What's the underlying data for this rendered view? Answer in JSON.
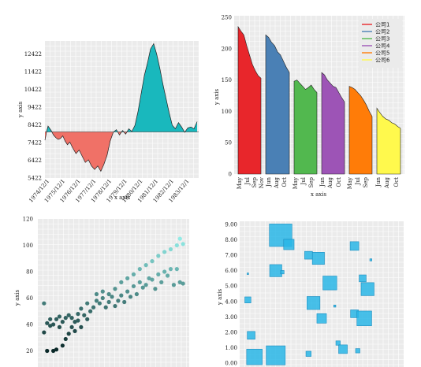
{
  "chart_data": [
    {
      "type": "area",
      "xlabel": "x axis",
      "ylabel": "y axis",
      "baseline": 8022,
      "ylim": [
        5422,
        13422
      ],
      "yticks": [
        "5422",
        "6422",
        "7422",
        "8422",
        "9422",
        "10422",
        "11422",
        "12422"
      ],
      "xticks": [
        "1974/12/1",
        "1975/12/1",
        "1976/12/1",
        "1977/12/1",
        "1978/12/1",
        "1979/12/1",
        "1980/12/1",
        "1981/12/1",
        "1982/12/1",
        "1983/12/1"
      ],
      "x": [
        0,
        0.1,
        0.2,
        0.4,
        0.55,
        0.7,
        0.85,
        1.0,
        1.15,
        1.3,
        1.45,
        1.6,
        1.8,
        2.0,
        2.2,
        2.4,
        2.6,
        2.8,
        3.0,
        3.2,
        3.4,
        3.6,
        3.8,
        4.0,
        4.2,
        4.4,
        4.6,
        4.8,
        5.0,
        5.2,
        5.4,
        5.6,
        5.8,
        6.0,
        6.2,
        6.4,
        6.6,
        6.8,
        7.0,
        7.2,
        7.4,
        7.6,
        7.8,
        8.0,
        8.2,
        8.4,
        8.6,
        8.8,
        9.0,
        9.2,
        9.4,
        9.6,
        9.8
      ],
      "y": [
        7550,
        8000,
        8350,
        8100,
        7850,
        7700,
        7600,
        7650,
        7800,
        7500,
        7300,
        7450,
        7100,
        6800,
        7000,
        6650,
        6300,
        6450,
        6100,
        5900,
        6100,
        5800,
        6200,
        6700,
        7500,
        8000,
        8150,
        7850,
        8100,
        7900,
        8200,
        8050,
        8400,
        9200,
        10200,
        11200,
        11900,
        12700,
        13000,
        12400,
        11600,
        10700,
        9900,
        9100,
        8400,
        8200,
        8550,
        8300,
        8000,
        8250,
        8300,
        8200,
        8600
      ],
      "above_color": "#19b8bd",
      "below_color": "#f07167"
    },
    {
      "type": "area",
      "xlabel": "x axis",
      "ylabel": "y axis",
      "ylim": [
        0,
        250
      ],
      "yticks": [
        "0",
        "50",
        "100",
        "150",
        "200",
        "250"
      ],
      "xticks": [
        "May",
        "Jul",
        "Sep",
        "Nov",
        "Jun",
        "Aug",
        "Oct",
        "May",
        "Jul",
        "Sep",
        "Jun",
        "Aug",
        "Oct",
        "May",
        "Jul",
        "Sep",
        "Jun",
        "Aug",
        "Oct"
      ],
      "series": [
        {
          "name": "公司1",
          "color": "#e8262b",
          "values": [
            235,
            228,
            222,
            205,
            190,
            175,
            165,
            157,
            153
          ]
        },
        {
          "name": "公司2",
          "color": "#4a80b5",
          "values": [
            222,
            218,
            210,
            205,
            195,
            190,
            180,
            170,
            162
          ]
        },
        {
          "name": "公司3",
          "color": "#52b84f",
          "values": [
            148,
            150,
            145,
            140,
            135,
            138,
            142,
            135,
            130
          ]
        },
        {
          "name": "公司4",
          "color": "#9d54b6",
          "values": [
            162,
            158,
            150,
            145,
            140,
            138,
            130,
            122,
            115
          ]
        },
        {
          "name": "公司5",
          "color": "#ff7c08",
          "values": [
            140,
            138,
            135,
            130,
            125,
            118,
            110,
            100,
            92
          ]
        },
        {
          "name": "公司6",
          "color": "#fff94d",
          "values": [
            105,
            98,
            92,
            88,
            86,
            82,
            80,
            76,
            73
          ]
        }
      ],
      "legend": "top-right"
    },
    {
      "type": "scatter",
      "ylabel": "y axis",
      "ylim": [
        0,
        120
      ],
      "yticks": [
        "20",
        "40",
        "60",
        "80",
        "100",
        "120"
      ],
      "points": [
        [
          2,
          56
        ],
        [
          2,
          34
        ],
        [
          3,
          41
        ],
        [
          3,
          20
        ],
        [
          4,
          39
        ],
        [
          4,
          44
        ],
        [
          5,
          20
        ],
        [
          5,
          40
        ],
        [
          6,
          44
        ],
        [
          6,
          21
        ],
        [
          7,
          46
        ],
        [
          7,
          38
        ],
        [
          8,
          42
        ],
        [
          8,
          24
        ],
        [
          9,
          45
        ],
        [
          9,
          29
        ],
        [
          10,
          47
        ],
        [
          10,
          33
        ],
        [
          11,
          45
        ],
        [
          11,
          38
        ],
        [
          12,
          42
        ],
        [
          12,
          35
        ],
        [
          13,
          48
        ],
        [
          13,
          43
        ],
        [
          14,
          52
        ],
        [
          14,
          38
        ],
        [
          15,
          47
        ],
        [
          16,
          56
        ],
        [
          16,
          44
        ],
        [
          17,
          50
        ],
        [
          18,
          53
        ],
        [
          19,
          58
        ],
        [
          19,
          63
        ],
        [
          20,
          56
        ],
        [
          21,
          65
        ],
        [
          21,
          60
        ],
        [
          22,
          53
        ],
        [
          23,
          63
        ],
        [
          23,
          57
        ],
        [
          24,
          61
        ],
        [
          25,
          67
        ],
        [
          25,
          54
        ],
        [
          26,
          58
        ],
        [
          27,
          62
        ],
        [
          27,
          72
        ],
        [
          28,
          57
        ],
        [
          29,
          65
        ],
        [
          29,
          75
        ],
        [
          30,
          61
        ],
        [
          31,
          69
        ],
        [
          31,
          78
        ],
        [
          32,
          63
        ],
        [
          33,
          72
        ],
        [
          33,
          82
        ],
        [
          34,
          68
        ],
        [
          35,
          70
        ],
        [
          35,
          85
        ],
        [
          36,
          75
        ],
        [
          37,
          74
        ],
        [
          37,
          88
        ],
        [
          38,
          67
        ],
        [
          39,
          78
        ],
        [
          39,
          92
        ],
        [
          40,
          72
        ],
        [
          41,
          80
        ],
        [
          41,
          95
        ],
        [
          42,
          77
        ],
        [
          43,
          97
        ],
        [
          43,
          82
        ],
        [
          44,
          70
        ],
        [
          45,
          100
        ],
        [
          45,
          82
        ],
        [
          46,
          72
        ],
        [
          46,
          105
        ],
        [
          47,
          101
        ],
        [
          47,
          71
        ]
      ]
    },
    {
      "type": "scatter",
      "ylabel": "y axis",
      "ylim": [
        0,
        9
      ],
      "yticks": [
        "0.00",
        "1.00",
        "2.00",
        "3.00",
        "4.00",
        "5.00",
        "6.00",
        "7.00",
        "8.00",
        "9.00"
      ],
      "color": "#29b6e6",
      "points": [
        [
          2.5,
          8.3,
          1.3
        ],
        [
          3.0,
          7.7,
          0.6
        ],
        [
          2.2,
          6.0,
          0.7
        ],
        [
          2.6,
          5.9,
          0.2
        ],
        [
          0.5,
          5.8,
          0.05
        ],
        [
          0.5,
          4.1,
          0.35
        ],
        [
          0.7,
          1.8,
          0.45
        ],
        [
          0.9,
          0.4,
          0.9
        ],
        [
          2.2,
          0.5,
          1.1
        ],
        [
          4.2,
          7.0,
          0.45
        ],
        [
          4.8,
          6.8,
          0.7
        ],
        [
          5.5,
          5.2,
          0.8
        ],
        [
          4.5,
          3.9,
          0.75
        ],
        [
          5.0,
          2.9,
          0.55
        ],
        [
          4.2,
          0.6,
          0.3
        ],
        [
          6.0,
          1.3,
          0.25
        ],
        [
          6.3,
          0.9,
          0.5
        ],
        [
          5.8,
          3.7,
          0.12
        ],
        [
          7.2,
          0.8,
          0.25
        ],
        [
          7.0,
          7.6,
          0.5
        ],
        [
          7.5,
          5.5,
          0.4
        ],
        [
          8.0,
          6.7,
          0.12
        ],
        [
          7.8,
          4.8,
          0.75
        ],
        [
          7.0,
          3.2,
          0.45
        ],
        [
          7.6,
          2.9,
          0.85
        ]
      ]
    }
  ]
}
